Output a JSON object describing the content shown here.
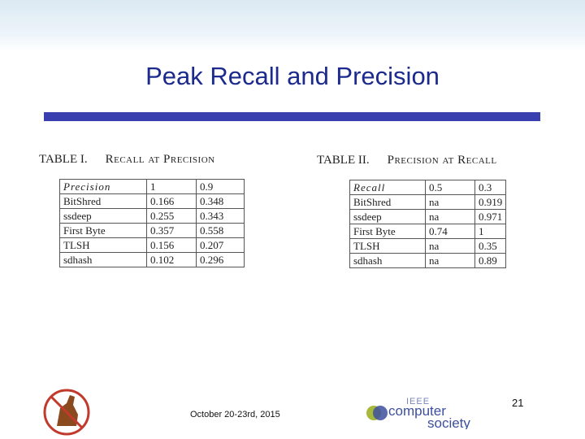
{
  "header": {
    "title": "Peak Recall and Precision"
  },
  "tables": [
    {
      "label": "TABLE I.",
      "caption": "Recall at Precision",
      "columns": [
        "Precision",
        "1",
        "0.9"
      ],
      "rows": [
        [
          "BitShred",
          "0.166",
          "0.348"
        ],
        [
          "ssdeep",
          "0.255",
          "0.343"
        ],
        [
          "First Byte",
          "0.357",
          "0.558"
        ],
        [
          "TLSH",
          "0.156",
          "0.207"
        ],
        [
          "sdhash",
          "0.102",
          "0.296"
        ]
      ]
    },
    {
      "label": "TABLE II.",
      "caption": "Precision at Recall",
      "columns": [
        "Recall",
        "0.5",
        "0.3"
      ],
      "rows": [
        [
          "BitShred",
          "na",
          "0.919"
        ],
        [
          "ssdeep",
          "na",
          "0.971"
        ],
        [
          "First Byte",
          "0.74",
          "1"
        ],
        [
          "TLSH",
          "na",
          "0.35"
        ],
        [
          "sdhash",
          "na",
          "0.89"
        ]
      ]
    }
  ],
  "footer": {
    "date": "October 20-23rd, 2015",
    "page": "21",
    "logo": [
      "IEEE",
      "computer",
      "society"
    ]
  }
}
